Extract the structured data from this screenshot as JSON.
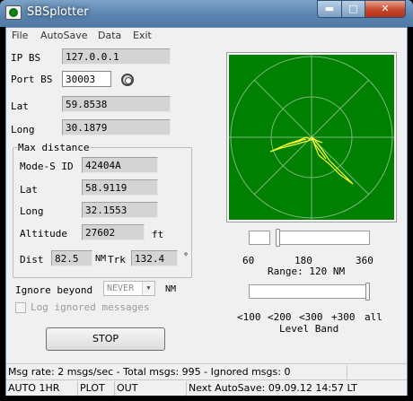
{
  "window": {
    "title": "SBSplotter",
    "min_glyph": "▬",
    "max_glyph": "□",
    "close_glyph": "✕"
  },
  "menu": [
    "File",
    "AutoSave",
    "Data",
    "Exit"
  ],
  "connection": {
    "ip_label": "IP BS",
    "ip_value": "127.0.0.1",
    "port_label": "Port BS",
    "port_value": "30003"
  },
  "position": {
    "lat_label": "Lat",
    "lat_value": "59.8538",
    "long_label": "Long",
    "long_value": "30.1879"
  },
  "max_distance": {
    "legend": "Max distance",
    "modes_label": "Mode-S ID",
    "modes_value": "42404A",
    "lat_label": "Lat",
    "lat_value": "58.9119",
    "long_label": "Long",
    "long_value": "32.1553",
    "alt_label": "Altitude",
    "alt_value": "27602",
    "alt_unit": "ft",
    "dist_label": "Dist",
    "dist_value": "82.5",
    "dist_unit": "NM",
    "trk_label": "Trk",
    "trk_value": "132.4",
    "trk_unit": "°"
  },
  "ignore": {
    "label": "Ignore beyond",
    "value": "NEVER",
    "unit": "NM",
    "log_label": "Log ignored messages",
    "log_checked": false
  },
  "stop_button": "STOP",
  "radar": {
    "background": "#008000",
    "grid_color": "#7ab87a",
    "track_color": "#ffff33"
  },
  "range": {
    "ticks": [
      "60",
      "180",
      "360"
    ],
    "label": "Range: 120 NM",
    "value_nm": 120,
    "min_nm": 60,
    "max_nm": 360
  },
  "level_band": {
    "ticks": [
      "<100",
      "<200",
      "<300",
      "+300",
      "all"
    ],
    "label": "Level Band",
    "selected": "all"
  },
  "status": {
    "message": "Msg rate: 2 msgs/sec - Total msgs: 995 - Ignored msgs: 0",
    "auto": "AUTO 1HR",
    "plot": "PLOT",
    "out": "OUT",
    "autosave": "Next AutoSave: 09.09.12 14:57 LT"
  }
}
